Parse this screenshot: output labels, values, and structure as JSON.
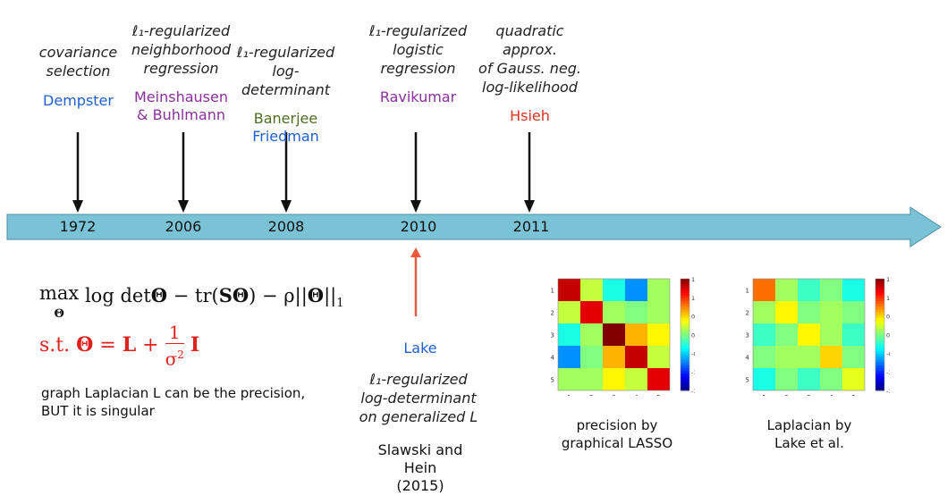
{
  "timeline": {
    "events": [
      {
        "method_lines": [
          "covariance",
          "selection"
        ],
        "author_lines": [
          "Dempster"
        ],
        "author_colors": [
          "#1f5fd6"
        ],
        "year": "1972"
      },
      {
        "method_lines": [
          "ℓ₁-regularized",
          "neighborhood",
          "regression"
        ],
        "author_lines": [
          "Meinshausen",
          "& Buhlmann"
        ],
        "author_colors": [
          "#8a2f9c",
          "#8a2f9c"
        ],
        "year": "2006"
      },
      {
        "method_lines": [
          "ℓ₁-regularized",
          "log-determinant"
        ],
        "author_lines": [
          "Banerjee",
          "Friedman"
        ],
        "author_colors": [
          "#4f6b22",
          "#1f5fd6"
        ],
        "year": "2008"
      },
      {
        "method_lines": [
          "ℓ₁-regularized",
          "logistic",
          "regression"
        ],
        "author_lines": [
          "Ravikumar"
        ],
        "author_colors": [
          "#8a2f9c"
        ],
        "year": "2010"
      },
      {
        "method_lines": [
          "quadratic approx.",
          "of Gauss. neg.",
          "log-likelihood"
        ],
        "author_lines": [
          "Hsieh"
        ],
        "author_colors": [
          "#e0321c"
        ],
        "year": "2011"
      }
    ],
    "bar_color": "#7ac3d6",
    "arrow_color": "#111111",
    "lake_arrow_color": "#e85a3a"
  },
  "formula": {
    "objective": "max_Θ log detΘ − tr(SΘ) − ρ||Θ||₁",
    "constraint": "s.t. Θ = L + (1/σ²) I",
    "constraint_color": "#e0201c"
  },
  "note": {
    "line1": "graph Laplacian L can be the precision,",
    "line2": "BUT it is singular"
  },
  "lake": {
    "author": "Lake",
    "author_color": "#1f5fd6",
    "method_lines": [
      "ℓ₁-regularized",
      "log-determinant",
      "on generalized L"
    ],
    "ref_lines": [
      "Slawski and Hein",
      "(2015)"
    ]
  },
  "heatmaps": [
    {
      "caption_lines": [
        "precision by",
        "graphical LASSO"
      ],
      "matrix": [
        [
          1.3,
          0.2,
          -0.3,
          -0.7,
          0.1
        ],
        [
          0.2,
          1.2,
          0.1,
          0.0,
          0.1
        ],
        [
          -0.3,
          0.1,
          1.5,
          0.6,
          0.4
        ],
        [
          -0.7,
          0.0,
          0.6,
          1.3,
          0.2
        ],
        [
          0.1,
          0.1,
          0.4,
          0.2,
          1.2
        ]
      ],
      "row_labels": [
        "1",
        "2",
        "3",
        "4",
        "5"
      ],
      "col_labels": [
        "1",
        "2",
        "3",
        "4",
        "5"
      ],
      "colorbar_ticks": [
        "1.5",
        "1",
        "0.5",
        "0",
        "-0.5",
        "-1",
        "-1.5"
      ]
    },
    {
      "caption_lines": [
        "Laplacian by",
        "Lake et al."
      ],
      "matrix": [
        [
          0.8,
          0.1,
          -0.2,
          0.0,
          -0.3
        ],
        [
          0.1,
          0.4,
          0.0,
          0.1,
          0.0
        ],
        [
          -0.2,
          0.0,
          0.4,
          0.1,
          -0.2
        ],
        [
          0.0,
          0.1,
          0.1,
          0.5,
          0.0
        ],
        [
          -0.3,
          0.0,
          -0.2,
          0.0,
          0.3
        ]
      ],
      "row_labels": [
        "1",
        "2",
        "3",
        "4",
        "5"
      ],
      "col_labels": [
        "1",
        "2",
        "3",
        "4",
        "5"
      ],
      "colorbar_ticks": [
        "1.5",
        "1",
        "0.5",
        "0",
        "-0.5",
        "-1",
        "-1.5"
      ]
    }
  ]
}
